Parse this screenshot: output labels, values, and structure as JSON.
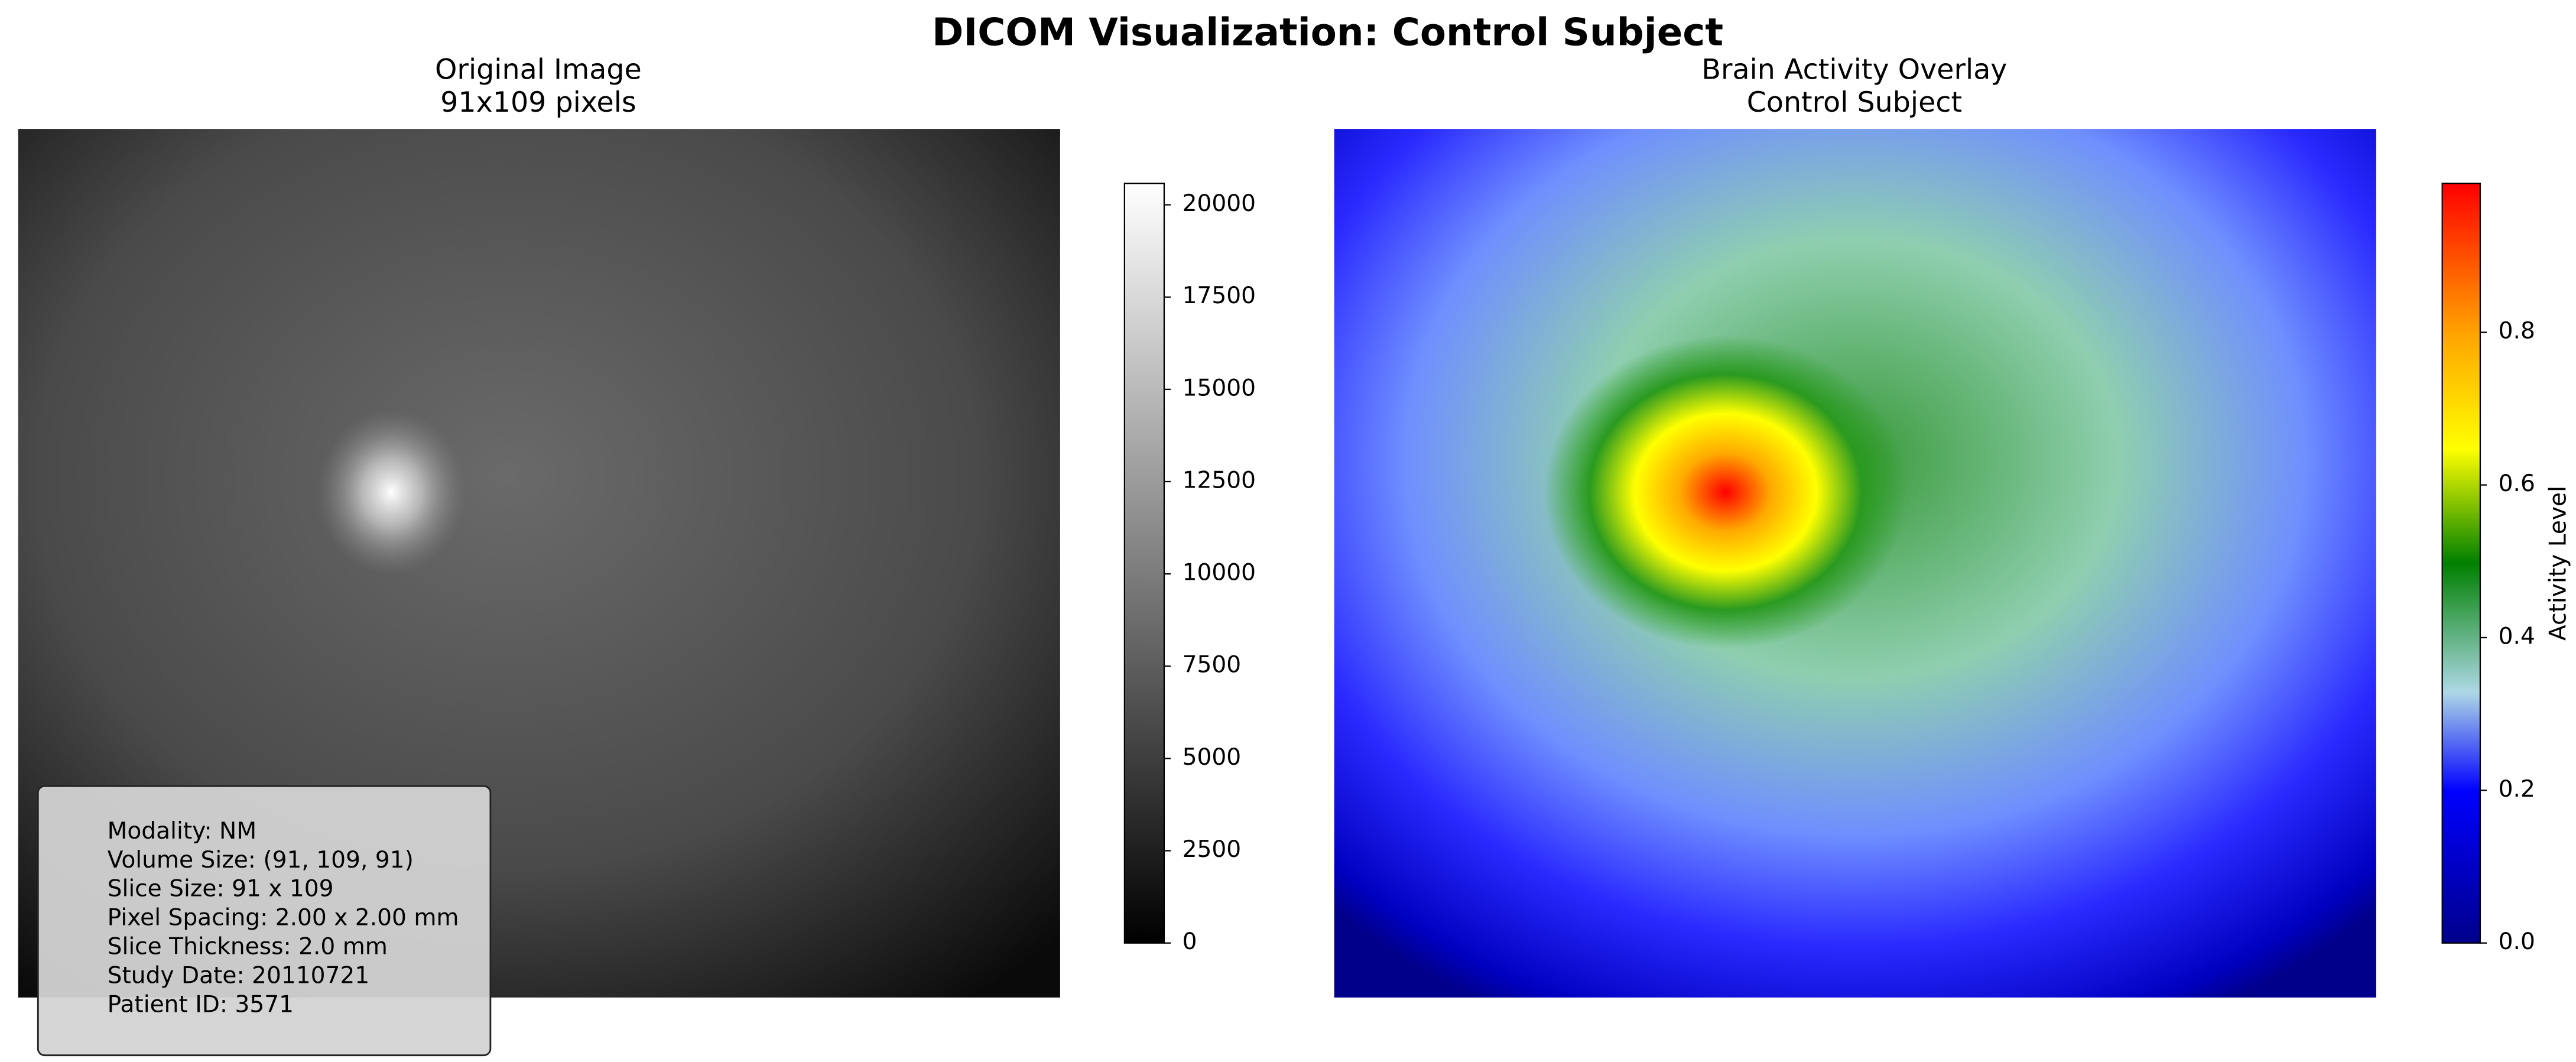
{
  "title": "DICOM Visualization: Control Subject",
  "chart_data": [
    {
      "type": "image",
      "title": "Original Image",
      "subtitle": "91x109 pixels",
      "colorbar": {
        "ylim": [
          0,
          20580
        ],
        "yticks": [
          0,
          2500,
          5000,
          7500,
          10000,
          12500,
          15000,
          17500,
          20000
        ]
      },
      "annotation_lines": [
        "Modality: NM",
        "Volume Size: (91, 109, 91)",
        "Slice Size: 91 x 109",
        "Pixel Spacing: 2.00 x 2.00 mm",
        "Slice Thickness: 2.0 mm",
        "Study Date: 20110721",
        "Patient ID: 3571"
      ]
    },
    {
      "type": "image",
      "title": "Brain Activity Overlay",
      "subtitle": "Control Subject",
      "colorbar": {
        "ylim": [
          0,
          0.995
        ],
        "label": "Activity Level",
        "yticks": [
          {
            "value": 0,
            "label": "0.0"
          },
          {
            "value": 0.2,
            "label": "0.2"
          },
          {
            "value": 0.4,
            "label": "0.4"
          },
          {
            "value": 0.6,
            "label": "0.6"
          },
          {
            "value": 0.8,
            "label": "0.8"
          }
        ]
      }
    }
  ]
}
